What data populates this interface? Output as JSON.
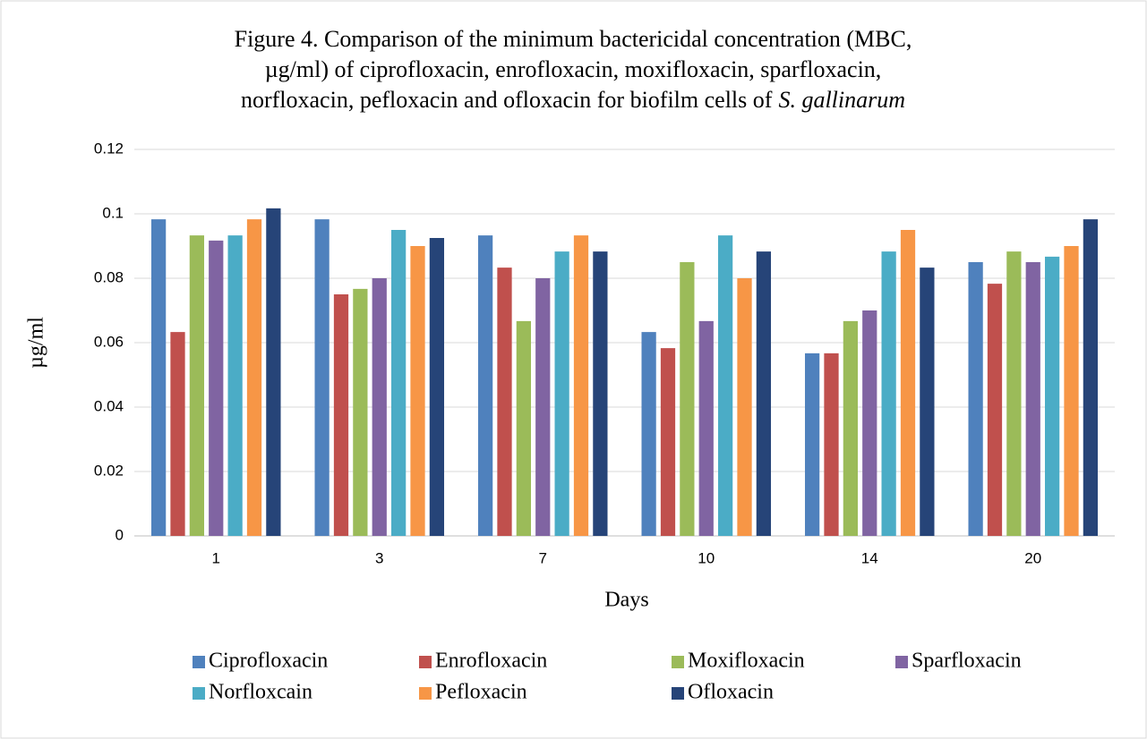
{
  "chart_data": {
    "type": "bar",
    "title": [
      "Figure 4. Comparison of the minimum bactericidal concentration (MBC,",
      "µg/ml) of ciprofloxacin, enrofloxacin, moxifloxacin, sparfloxacin,",
      "norfloxacin, pefloxacin and ofloxacin for biofilm cells of",
      "S. gallinarum"
    ],
    "x_label": "Days",
    "y_label": "µg/ml",
    "categories": [
      "1",
      "3",
      "7",
      "10",
      "14",
      "20"
    ],
    "series": [
      {
        "name": "Ciprofloxacin",
        "color": "#4f81bd",
        "values": [
          0.0983,
          0.0983,
          0.0933,
          0.0633,
          0.0567,
          0.085
        ]
      },
      {
        "name": "Enrofloxacin",
        "color": "#c0504d",
        "values": [
          0.0633,
          0.075,
          0.0833,
          0.0583,
          0.0567,
          0.0783
        ]
      },
      {
        "name": "Moxifloxacin",
        "color": "#9bbb59",
        "values": [
          0.0933,
          0.0767,
          0.0667,
          0.085,
          0.0667,
          0.0883
        ]
      },
      {
        "name": "Sparfloxacin",
        "color": "#8064a2",
        "values": [
          0.0917,
          0.08,
          0.08,
          0.0667,
          0.07,
          0.085
        ]
      },
      {
        "name": "Norfloxcain",
        "color": "#4bacc6",
        "values": [
          0.0933,
          0.095,
          0.0883,
          0.0933,
          0.0883,
          0.0867
        ]
      },
      {
        "name": "Pefloxacin",
        "color": "#f79646",
        "values": [
          0.0983,
          0.09,
          0.0933,
          0.08,
          0.095,
          0.09
        ]
      },
      {
        "name": "Ofloxacin",
        "color": "#264478",
        "values": [
          0.1017,
          0.0925,
          0.0883,
          0.0883,
          0.0833,
          0.0983
        ]
      }
    ],
    "ylim": [
      0,
      0.12
    ],
    "yticks": [
      0,
      0.02,
      0.04,
      0.06,
      0.08,
      0.1,
      0.12
    ],
    "grid": true,
    "legend": "bottom"
  }
}
